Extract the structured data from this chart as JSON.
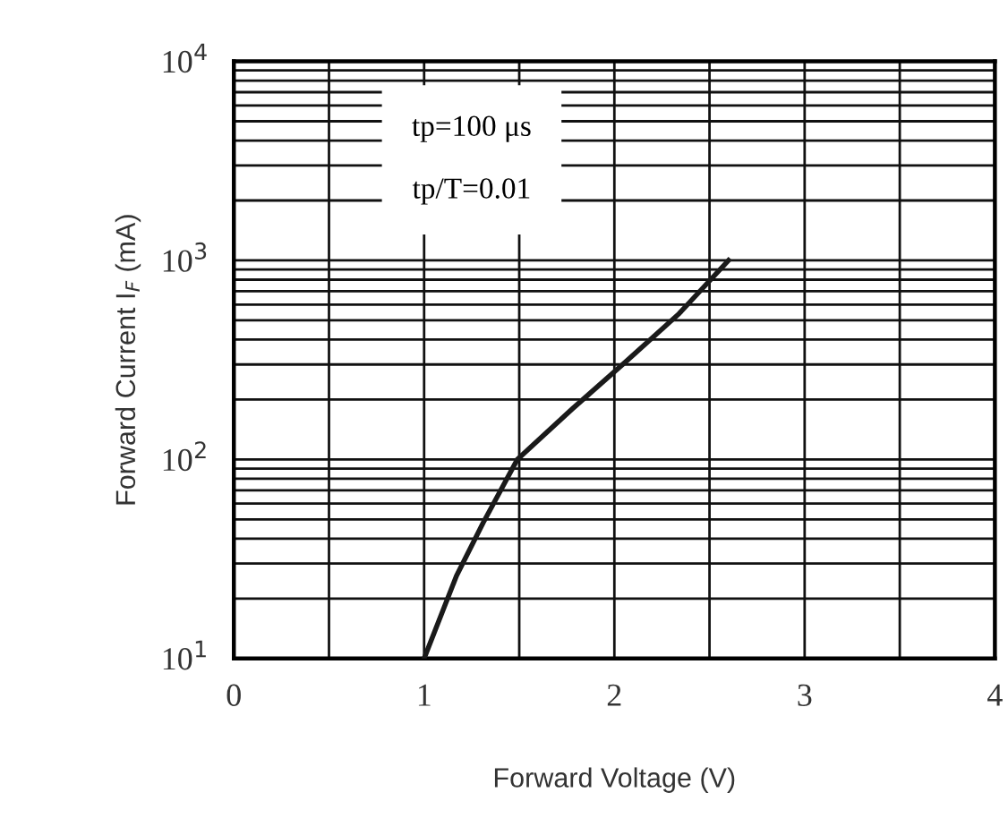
{
  "chart_data": {
    "type": "line",
    "xlabel": "Forward Voltage (V)",
    "ylabel": "Forward Current I$_{F}$ (mA)",
    "x": [
      1.0,
      1.17,
      1.31,
      1.49,
      1.78,
      2.06,
      2.34,
      2.6
    ],
    "series": [
      {
        "color": "#1a1a1a",
        "values": [
          10,
          26,
          48,
          100,
          180,
          310,
          540,
          1000
        ]
      }
    ],
    "log": "y",
    "xlim": [
      0,
      4
    ],
    "ylim": [
      10,
      10000
    ],
    "xticks": [
      0,
      {
        "value": 0.5,
        "label": null
      },
      1,
      {
        "value": 1.5,
        "label": null
      },
      2,
      {
        "value": 2.5,
        "label": null
      },
      3,
      {
        "value": 3.5,
        "label": null
      },
      4
    ],
    "yticks": [
      {
        "value": 10,
        "label": "10$^{1}$"
      },
      {
        "value": 100,
        "label": "10$^{2}$"
      },
      {
        "value": 1000,
        "label": "10$^{3}$"
      },
      {
        "value": 10000,
        "label": "10$^{4}$"
      }
    ],
    "grid": true,
    "marker": "none",
    "line_style": "solid",
    "annotations": [
      "tp=100 μs",
      "tp/T=0.01"
    ]
  }
}
